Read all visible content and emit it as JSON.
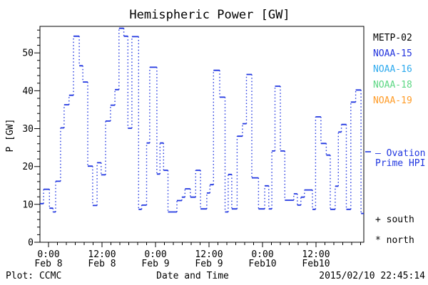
{
  "title": "Hemispheric Power [GW]",
  "axes": {
    "y_label": "P [GW]",
    "x_label": "Date and Time"
  },
  "footer": {
    "plot_credit": "Plot: CCMC",
    "timestamp": "2015/02/10 22:45:14"
  },
  "legend": {
    "satellites": [
      {
        "label": "METP-02",
        "color": "#000000"
      },
      {
        "label": "NOAA-15",
        "color": "#2233dd"
      },
      {
        "label": "NOAA-16",
        "color": "#2eaaee"
      },
      {
        "label": "NOAA-18",
        "color": "#5cd783"
      },
      {
        "label": "NOAA-19",
        "color": "#ff9c28"
      }
    ],
    "line_label_1": "– Ovation",
    "line_label_2": "Prime HPI",
    "south_marker": "+ south",
    "north_marker": "* north"
  },
  "chart_data": {
    "type": "step-line",
    "title": "Hemispheric Power [GW]",
    "xlabel": "Date and Time",
    "ylabel": "P [GW]",
    "x_unit": "hours since 2015-02-08 00:00 UT",
    "xlim": [
      -1.92,
      70.72
    ],
    "ylim": [
      0,
      57
    ],
    "grid": false,
    "y_major_ticks": [
      0,
      10,
      20,
      30,
      40,
      50
    ],
    "y_minor_step": 2,
    "x_minor_step_hours": 2,
    "x_major_ticks": [
      {
        "t": 0,
        "time": "0:00",
        "date": "Feb 8"
      },
      {
        "t": 12,
        "time": "12:00",
        "date": "Feb 8"
      },
      {
        "t": 24,
        "time": "0:00",
        "date": "Feb 9"
      },
      {
        "t": 36,
        "time": "12:00",
        "date": "Feb 9"
      },
      {
        "t": 48,
        "time": "0:00",
        "date": "Feb10"
      },
      {
        "t": 60,
        "time": "12:00",
        "date": "Feb10"
      }
    ],
    "series": [
      {
        "name": "Ovation Prime HPI",
        "color": "#2036e0",
        "style": "dotted-step",
        "points": [
          [
            -1.9,
            10.2
          ],
          [
            -1.1,
            14.0
          ],
          [
            0.2,
            9.0
          ],
          [
            1.0,
            8.0
          ],
          [
            1.6,
            16.1
          ],
          [
            2.7,
            30.2
          ],
          [
            3.5,
            36.3
          ],
          [
            4.6,
            38.8
          ],
          [
            5.6,
            54.4
          ],
          [
            6.9,
            46.6
          ],
          [
            7.7,
            42.3
          ],
          [
            8.8,
            20.1
          ],
          [
            9.9,
            9.7
          ],
          [
            10.9,
            21.0
          ],
          [
            11.8,
            17.8
          ],
          [
            12.8,
            32.0
          ],
          [
            13.9,
            36.2
          ],
          [
            14.9,
            40.3
          ],
          [
            15.8,
            56.5
          ],
          [
            16.9,
            54.4
          ],
          [
            17.8,
            30.1
          ],
          [
            18.7,
            54.3
          ],
          [
            20.2,
            8.7
          ],
          [
            20.9,
            9.8
          ],
          [
            22.0,
            26.2
          ],
          [
            22.7,
            46.2
          ],
          [
            24.3,
            18.0
          ],
          [
            25.0,
            26.2
          ],
          [
            25.8,
            19.0
          ],
          [
            26.8,
            8.0
          ],
          [
            28.8,
            11.0
          ],
          [
            29.9,
            11.9
          ],
          [
            30.6,
            14.1
          ],
          [
            31.8,
            11.9
          ],
          [
            33.0,
            19.0
          ],
          [
            34.1,
            8.8
          ],
          [
            35.5,
            13.0
          ],
          [
            36.2,
            15.2
          ],
          [
            37.0,
            45.4
          ],
          [
            38.4,
            38.3
          ],
          [
            39.6,
            8.0
          ],
          [
            40.3,
            17.9
          ],
          [
            41.1,
            8.8
          ],
          [
            42.3,
            28.0
          ],
          [
            43.5,
            31.3
          ],
          [
            44.4,
            44.3
          ],
          [
            45.6,
            17.0
          ],
          [
            47.1,
            8.8
          ],
          [
            48.5,
            14.9
          ],
          [
            49.4,
            8.8
          ],
          [
            50.1,
            24.1
          ],
          [
            50.8,
            41.2
          ],
          [
            52.0,
            24.1
          ],
          [
            53.0,
            11.1
          ],
          [
            55.0,
            12.8
          ],
          [
            55.8,
            9.8
          ],
          [
            56.6,
            11.9
          ],
          [
            57.4,
            13.8
          ],
          [
            59.2,
            8.7
          ],
          [
            59.9,
            33.1
          ],
          [
            61.1,
            26.1
          ],
          [
            62.3,
            23.0
          ],
          [
            63.2,
            8.7
          ],
          [
            64.3,
            14.8
          ],
          [
            65.0,
            29.1
          ],
          [
            65.7,
            31.1
          ],
          [
            66.8,
            8.7
          ],
          [
            67.8,
            37.0
          ],
          [
            68.9,
            40.2
          ],
          [
            70.1,
            7.6
          ]
        ]
      }
    ]
  }
}
